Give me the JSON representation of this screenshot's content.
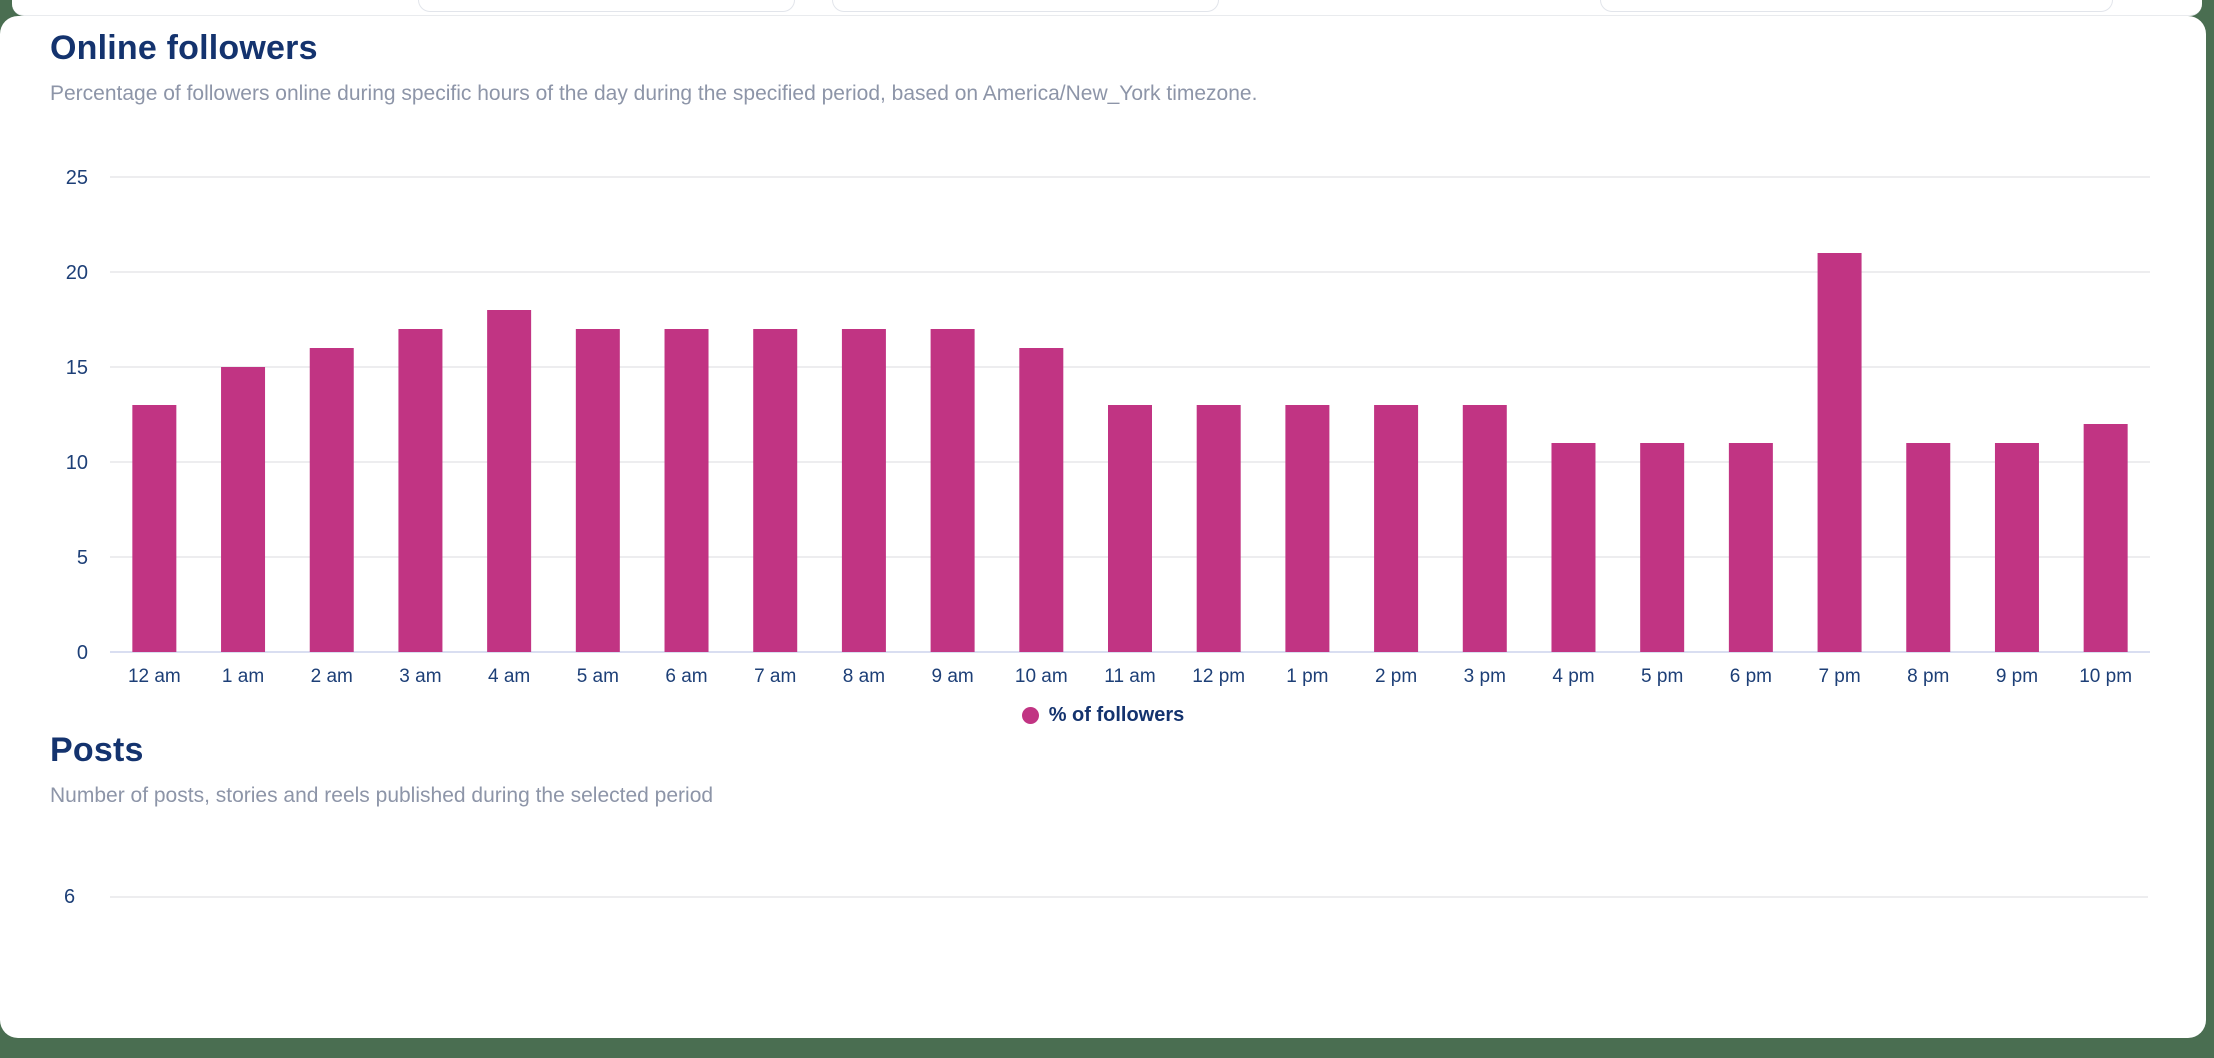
{
  "page": {
    "background_color": "#4a6e51",
    "card_color": "#ffffff"
  },
  "toolbar": {
    "inputs": [
      {
        "value": ""
      },
      {
        "value": ""
      },
      {
        "value": ""
      }
    ]
  },
  "online_followers": {
    "title": "Online followers",
    "subtitle": "Percentage of followers online during specific hours of the day during the specified period, based on America/New_York timezone.",
    "legend": {
      "label": "% of followers",
      "color": "#c13483"
    }
  },
  "posts": {
    "title": "Posts",
    "subtitle": "Number of posts, stories and reels published during the selected period",
    "visible_tick": "6"
  },
  "colors": {
    "bar": "#c13483",
    "gridline": "#ededef",
    "baseline": "#d9def1",
    "axis_text": "#1d3f77",
    "heading": "#14336e",
    "subtitle": "#8d95a8"
  },
  "chart_data": [
    {
      "type": "bar",
      "title": "Online followers",
      "xlabel": "",
      "ylabel": "",
      "ylim": [
        0,
        25
      ],
      "yticks": [
        0,
        5,
        10,
        15,
        20,
        25
      ],
      "grid": true,
      "legend": [
        "% of followers"
      ],
      "legend_position": "bottom",
      "bar_color": "#c13483",
      "categories": [
        "12 am",
        "1 am",
        "2 am",
        "3 am",
        "4 am",
        "5 am",
        "6 am",
        "7 am",
        "8 am",
        "9 am",
        "10 am",
        "11 am",
        "12 pm",
        "1 pm",
        "2 pm",
        "3 pm",
        "4 pm",
        "5 pm",
        "6 pm",
        "7 pm",
        "8 pm",
        "9 pm",
        "10 pm"
      ],
      "values": [
        13,
        15,
        16,
        17,
        18,
        17,
        17,
        17,
        17,
        17,
        16,
        13,
        13,
        13,
        13,
        13,
        11,
        11,
        11,
        21,
        11,
        11,
        12
      ]
    },
    {
      "type": "bar",
      "title": "Posts",
      "visible_portion": "top gridline only",
      "yticks": [
        6
      ],
      "categories": [],
      "values": []
    }
  ]
}
